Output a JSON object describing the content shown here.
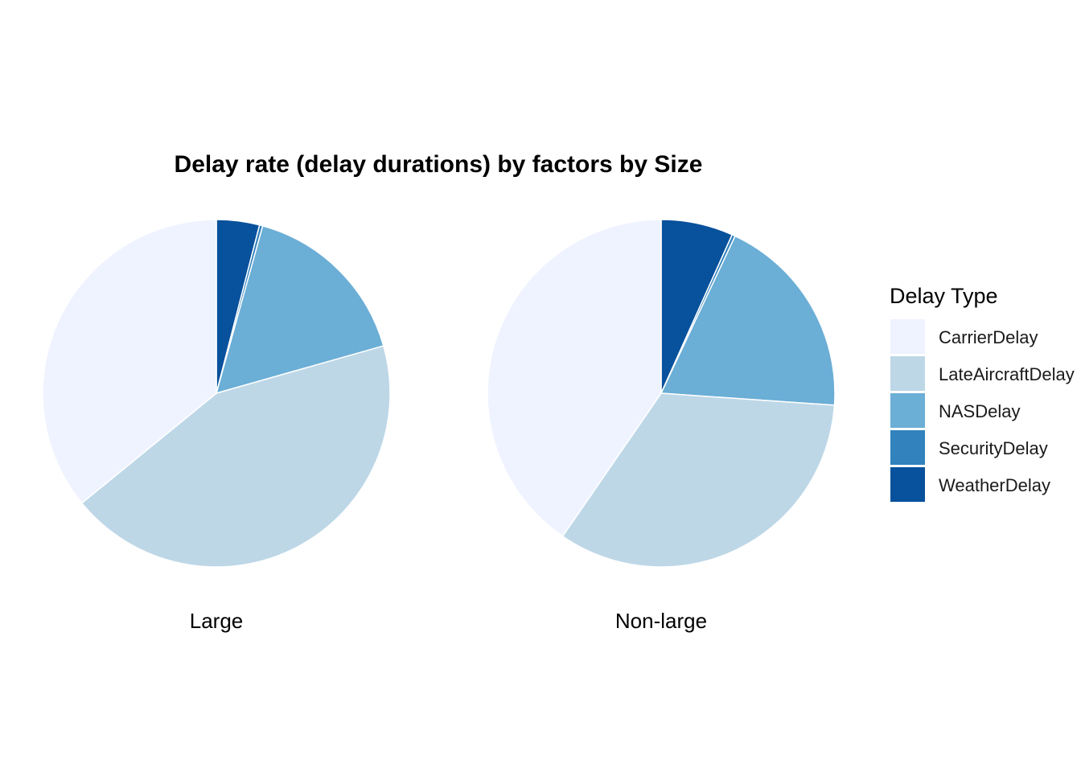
{
  "chart_data": {
    "type": "pie",
    "title": "Delay rate (delay durations) by factors by Size",
    "legend_title": "Delay Type",
    "legend_position": "right",
    "categories": [
      "CarrierDelay",
      "LateAircraftDelay",
      "NASDelay",
      "SecurityDelay",
      "WeatherDelay"
    ],
    "colors": [
      "#EFF3FF",
      "#BDD7E7",
      "#6BAED6",
      "#3182BD",
      "#08519C"
    ],
    "facets": [
      {
        "label": "Large",
        "values": [
          35.9,
          43.5,
          16.3,
          0.3,
          4.0
        ]
      },
      {
        "label": "Non-large",
        "values": [
          40.4,
          33.5,
          19.1,
          0.3,
          6.7
        ]
      }
    ]
  }
}
